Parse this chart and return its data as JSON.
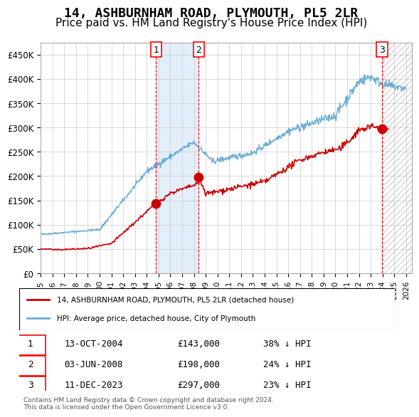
{
  "title": "14, ASHBURNHAM ROAD, PLYMOUTH, PL5 2LR",
  "subtitle": "Price paid vs. HM Land Registry's House Price Index (HPI)",
  "title_fontsize": 13,
  "subtitle_fontsize": 11,
  "xlim": [
    1995.0,
    2026.5
  ],
  "ylim": [
    0,
    475000
  ],
  "yticks": [
    0,
    50000,
    100000,
    150000,
    200000,
    250000,
    300000,
    350000,
    400000,
    450000
  ],
  "ytick_labels": [
    "£0",
    "£50K",
    "£100K",
    "£150K",
    "£200K",
    "£250K",
    "£300K",
    "£350K",
    "£400K",
    "£450K"
  ],
  "xtick_years": [
    1995,
    1996,
    1997,
    1998,
    1999,
    2000,
    2001,
    2002,
    2003,
    2004,
    2005,
    2006,
    2007,
    2008,
    2009,
    2010,
    2011,
    2012,
    2013,
    2014,
    2015,
    2016,
    2017,
    2018,
    2019,
    2020,
    2021,
    2022,
    2023,
    2024,
    2025,
    2026
  ],
  "hpi_line_color": "#6baed6",
  "price_line_color": "#cc0000",
  "dot_color": "#cc0000",
  "sale1_x": 2004.79,
  "sale1_y": 143000,
  "sale1_label": "1",
  "sale2_x": 2008.42,
  "sale2_y": 198000,
  "sale2_label": "2",
  "sale3_x": 2023.95,
  "sale3_y": 297000,
  "sale3_label": "3",
  "vline1_x": 2004.79,
  "vline2_x": 2008.42,
  "vline3_x": 2023.95,
  "shade1_x1": 2004.79,
  "shade1_x2": 2008.42,
  "hatch_x1": 2023.95,
  "hatch_x2": 2026.5,
  "legend_line1": "14, ASHBURNHAM ROAD, PLYMOUTH, PL5 2LR (detached house)",
  "legend_line2": "HPI: Average price, detached house, City of Plymouth",
  "table_rows": [
    {
      "num": "1",
      "date": "13-OCT-2004",
      "price": "£143,000",
      "hpi": "38% ↓ HPI"
    },
    {
      "num": "2",
      "date": "03-JUN-2008",
      "price": "£198,000",
      "hpi": "24% ↓ HPI"
    },
    {
      "num": "3",
      "date": "11-DEC-2023",
      "price": "£297,000",
      "hpi": "23% ↓ HPI"
    }
  ],
  "footer1": "Contains HM Land Registry data © Crown copyright and database right 2024.",
  "footer2": "This data is licensed under the Open Government Licence v3.0.",
  "bg_color": "#ffffff",
  "grid_color": "#cccccc",
  "plot_bg_color": "#ffffff"
}
